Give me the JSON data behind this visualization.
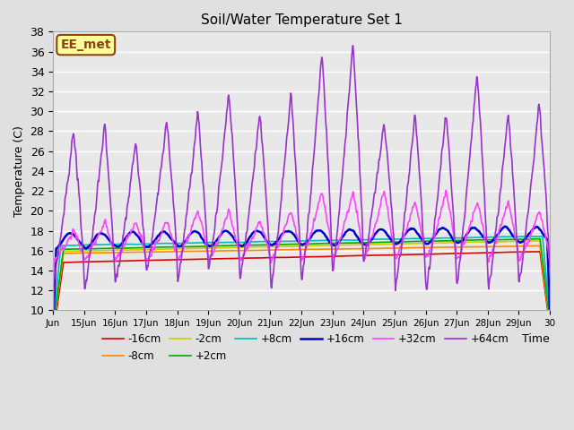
{
  "title": "Soil/Water Temperature Set 1",
  "xlabel": "Time",
  "ylabel": "Temperature (C)",
  "ylim": [
    10,
    38
  ],
  "xlim": [
    0,
    16
  ],
  "xtick_positions": [
    0,
    1,
    2,
    3,
    4,
    5,
    6,
    7,
    8,
    9,
    10,
    11,
    12,
    13,
    14,
    15,
    16
  ],
  "xtick_labels": [
    "Jun",
    "15Jun",
    "16Jun",
    "17Jun",
    "18Jun",
    "19Jun",
    "20Jun",
    "21Jun",
    "22Jun",
    "23Jun",
    "24Jun",
    "25Jun",
    "26Jun",
    "27Jun",
    "28Jun",
    "29Jun",
    "30"
  ],
  "ytick_values": [
    10,
    12,
    14,
    16,
    18,
    20,
    22,
    24,
    26,
    28,
    30,
    32,
    34,
    36,
    38
  ],
  "bg_color": "#e0e0e0",
  "plot_bg_color": "#e8e8e8",
  "annotation_text": "EE_met",
  "annotation_bg": "#ffff99",
  "annotation_border": "#8b4513",
  "series": {
    "-16cm": {
      "color": "#dd0000",
      "linewidth": 1.2
    },
    "-8cm": {
      "color": "#ff8800",
      "linewidth": 1.2
    },
    "-2cm": {
      "color": "#cccc00",
      "linewidth": 1.2
    },
    "+2cm": {
      "color": "#00aa00",
      "linewidth": 1.2
    },
    "+8cm": {
      "color": "#00bbbb",
      "linewidth": 1.2
    },
    "+16cm": {
      "color": "#0000cc",
      "linewidth": 1.8
    },
    "+32cm": {
      "color": "#ff44ff",
      "linewidth": 1.2
    },
    "+64cm": {
      "color": "#9933cc",
      "linewidth": 1.2
    }
  },
  "p64_peaks": [
    28,
    29,
    27,
    29,
    30,
    32,
    30,
    32,
    36,
    37,
    29,
    30,
    30,
    34,
    30,
    31
  ],
  "p64_troughs": [
    13,
    12,
    13,
    14,
    13,
    14,
    13,
    12,
    13,
    14,
    15,
    12,
    12,
    13,
    12,
    13
  ],
  "p32_peaks": [
    18,
    19,
    19,
    19,
    20,
    20,
    19,
    20,
    22,
    22,
    22,
    21,
    22,
    21,
    21,
    20
  ],
  "p32_troughs": [
    15,
    15,
    15,
    15,
    15,
    15,
    15,
    15,
    15,
    15,
    15,
    15,
    15,
    15,
    15,
    15
  ]
}
